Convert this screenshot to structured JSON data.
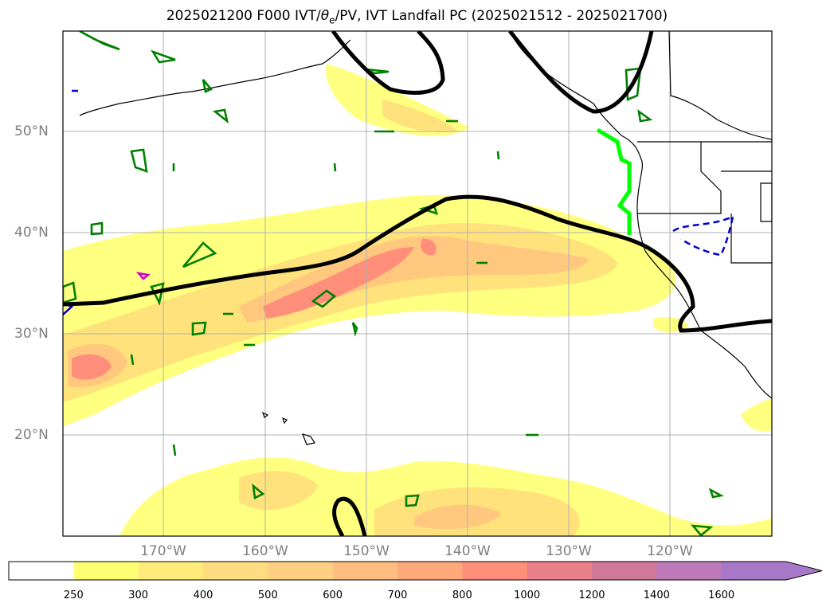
{
  "title": {
    "prefix": "2025021200 F000 IVT/",
    "theta": "θ",
    "sub": "e",
    "suffix": "/PV, IVT Landfall PC (2025021512 - 2025021700)"
  },
  "map": {
    "projection": "PlateCarree",
    "lon_range": [
      -180,
      -110
    ],
    "lat_range": [
      10,
      60
    ],
    "grid": true,
    "lat_labels": [
      "20°N",
      "30°N",
      "40°N",
      "50°N"
    ],
    "lon_labels": [
      "170°W",
      "160°W",
      "150°W",
      "140°W",
      "130°W",
      "120°W"
    ]
  },
  "colorbar": {
    "levels": [
      "250",
      "300",
      "400",
      "500",
      "600",
      "700",
      "800",
      "1000",
      "1200",
      "1400",
      "1600"
    ],
    "colors": [
      "#ffffff",
      "#ffff73",
      "#ffeb7a",
      "#ffdc7f",
      "#ffd082",
      "#ffbe80",
      "#ffa87a",
      "#ff8f7a",
      "#e8808a",
      "#d07898",
      "#bd7ab8",
      "#a878c8"
    ],
    "extend": "max"
  },
  "legend_colors": {
    "ivt_landfall_line": "#00ff00",
    "theta_contour": "#000000",
    "pv_contour_green": "#008000",
    "pv_contour_blue": "#0000cc",
    "pv_contour_magenta": "#cc00cc"
  }
}
